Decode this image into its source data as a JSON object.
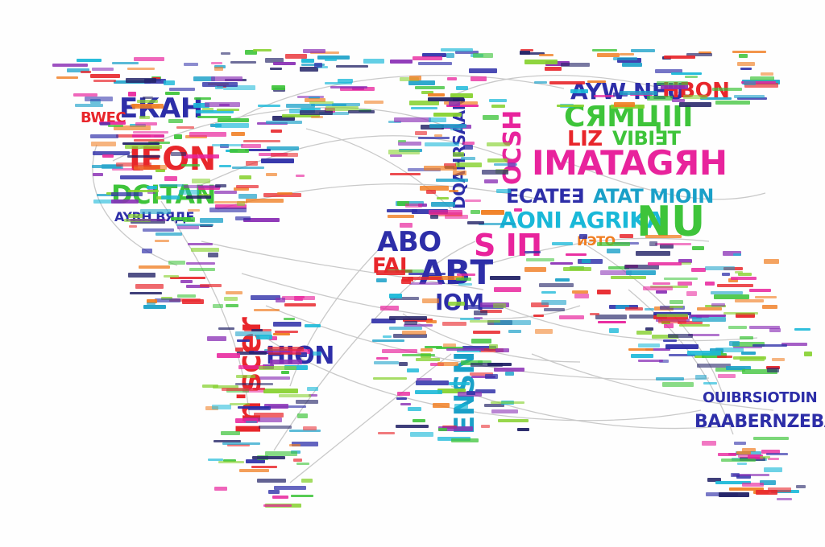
{
  "colors": {
    "red": "#e8262b",
    "blue": "#2d2ea8",
    "green": "#3ec43a",
    "magenta": "#e8239c",
    "teal": "#1aa0c8",
    "lime": "#86d12f",
    "orange": "#f07d21",
    "purple": "#8a2fb5",
    "dark": "#222266",
    "cyan": "#19b8d8",
    "route": "#c9c9c9"
  },
  "words": {
    "na_enh": "ЕКАН",
    "na_bwec": "BWEC",
    "na_ieon": "IEON",
    "na_dcitan": "DCITAN",
    "na_ayrb": "AYRH ВЯДE",
    "sa_ln_scer": "ln'scer",
    "sa_hion": "HION",
    "eu_ocsh": "OCSH",
    "eu_abvnhnam": "DQAHRSAAN",
    "af_abo": "ABO",
    "af_fal": "FAL",
    "af_abt": "ABT",
    "af_sid": "S IΠ",
    "af_iom": "IOM",
    "af_ensu": "ENSN",
    "as_ayw": "AYW NEU",
    "as_hbon": "HBON",
    "as_crd": "СЯMЦIII",
    "as_liz": "LIZ",
    "as_imata": "IMATAGЯH",
    "as_vsib": "VIBI∃T",
    "as_atat": "ATAT MIOIN",
    "as_ecaf": "ECATE∃",
    "as_aoni": "AONI AGRIKA",
    "as_nu": "NU",
    "as_nbro": "ИЭТО",
    "au_ouib": "OUIBRSIOTDIN",
    "au_baab": "BAABERNZEBAI"
  }
}
